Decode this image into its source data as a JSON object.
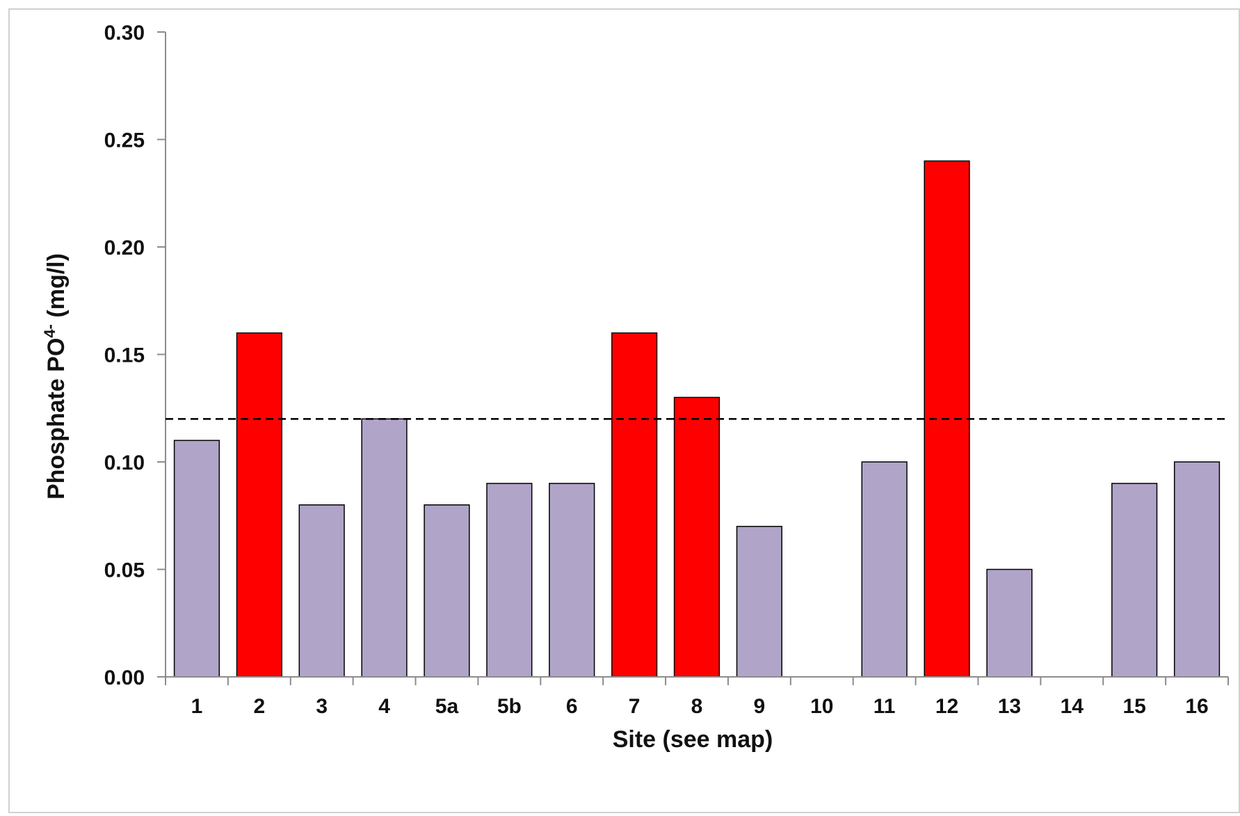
{
  "chart_data": {
    "type": "bar",
    "title": "",
    "xlabel": "Site (see map)",
    "ylabel": {
      "main": "Phosphate PO",
      "superscript": "4-",
      "unit": " (mg/l)"
    },
    "ylim": [
      0,
      0.3
    ],
    "yticks": [
      0.0,
      0.05,
      0.1,
      0.15,
      0.2,
      0.25,
      0.3
    ],
    "ytick_labels": [
      "0.00",
      "0.05",
      "0.10",
      "0.15",
      "0.20",
      "0.25",
      "0.30"
    ],
    "categories": [
      "1",
      "2",
      "3",
      "4",
      "5a",
      "5b",
      "6",
      "7",
      "8",
      "9",
      "10",
      "11",
      "12",
      "13",
      "14",
      "15",
      "16"
    ],
    "values": [
      0.11,
      0.16,
      0.08,
      0.12,
      0.08,
      0.09,
      0.09,
      0.16,
      0.13,
      0.07,
      0,
      0.1,
      0.24,
      0.05,
      0,
      0.09,
      0.1
    ],
    "threshold": 0.12,
    "grid": false,
    "colors": {
      "normal": "#b1a4c9",
      "exceed": "#ff0000",
      "bar_outline": "#000000",
      "axis": "#8c8c8c",
      "threshold_line": "#000000"
    }
  }
}
